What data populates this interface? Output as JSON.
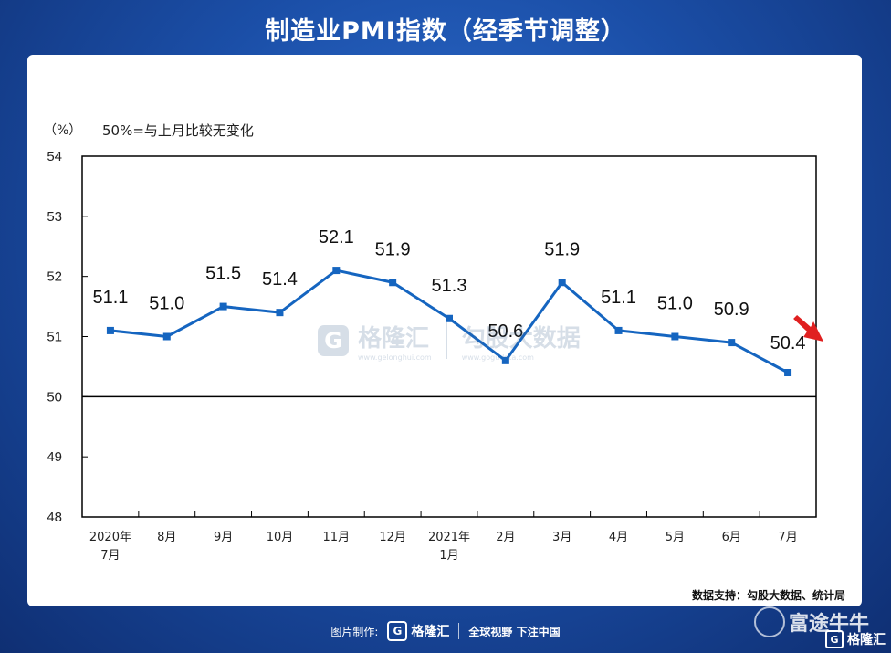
{
  "header": {
    "title": "制造业PMI指数（经季节调整）"
  },
  "chart_data": {
    "type": "line",
    "unit_label": "（%）",
    "reference_note": "50%=与上月比较无变化",
    "categories": [
      [
        "2020年",
        "7月"
      ],
      [
        "8月"
      ],
      [
        "9月"
      ],
      [
        "10月"
      ],
      [
        "11月"
      ],
      [
        "12月"
      ],
      [
        "2021年",
        "1月"
      ],
      [
        "2月"
      ],
      [
        "3月"
      ],
      [
        "4月"
      ],
      [
        "5月"
      ],
      [
        "6月"
      ],
      [
        "7月"
      ]
    ],
    "series": [
      {
        "values": [
          51.1,
          51.0,
          51.5,
          51.4,
          52.1,
          51.9,
          51.3,
          50.6,
          51.9,
          51.1,
          51.0,
          50.9,
          50.4
        ]
      }
    ],
    "data_labels": [
      "51.1",
      "51.0",
      "51.5",
      "51.4",
      "52.1",
      "51.9",
      "51.3",
      "50.6",
      "51.9",
      "51.1",
      "51.0",
      "50.9",
      "50.4"
    ],
    "ylim": [
      48,
      54
    ],
    "yticks": [
      48,
      49,
      50,
      51,
      52,
      53,
      54
    ],
    "reference_line": 50,
    "grid": false,
    "line_color": "#1565c0",
    "arrow_color": "#e02020"
  },
  "source": "数据支持：勾股大数据、统计局",
  "watermark": {
    "logo_char": "G",
    "brand": "格隆汇",
    "brand_sub": "www.gelonghui.com",
    "brand2": "勾股大数据",
    "brand2_sub": "www.gogudata.com"
  },
  "footer": {
    "made_by": "图片制作:",
    "logo_char": "G",
    "brand": "格隆汇",
    "slogan": "全球视野 下注中国"
  },
  "corner": {
    "brand": "富途牛牛",
    "sub_logo": "G",
    "sub_brand": "格隆汇"
  }
}
